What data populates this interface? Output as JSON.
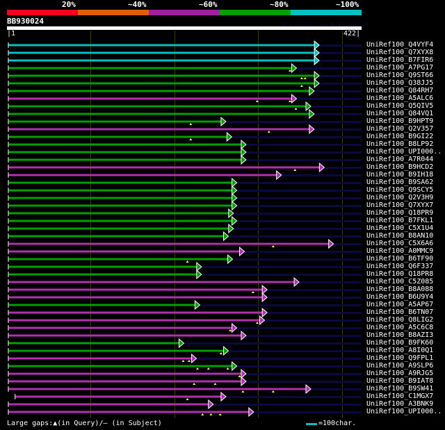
{
  "identity_legend": [
    {
      "label": "20%",
      "color": "#ff0020"
    },
    {
      "label": "~40%",
      "color": "#e06000"
    },
    {
      "label": "~60%",
      "color": "#a020a0"
    },
    {
      "label": "~80%",
      "color": "#00a000"
    },
    {
      "label": "~100%",
      "color": "#00c0c0"
    }
  ],
  "query": {
    "name": "BB930024",
    "start": "1",
    "end": "422",
    "length": 422,
    "version": "AlignView.pm Beta rel.7"
  },
  "colors": {
    "cyan": "#00c0c0",
    "green": "#00a000",
    "magenta": "#b030b0",
    "tail": "#0a0a40",
    "mark": "#ffff60"
  },
  "hits": [
    {
      "label": "UniRef100_Q4VYF4",
      "c": "cyan",
      "s": 1,
      "e": 365,
      "m": []
    },
    {
      "label": "UniRef100_Q7XYX8",
      "c": "cyan",
      "s": 1,
      "e": 365,
      "m": []
    },
    {
      "label": "UniRef100_B7FIR6",
      "c": "cyan",
      "s": 1,
      "e": 365,
      "m": []
    },
    {
      "label": "UniRef100_A7PG17",
      "c": "green",
      "s": 1,
      "e": 338,
      "m": [
        336
      ]
    },
    {
      "label": "UniRef100_Q9ST66",
      "c": "green",
      "s": 1,
      "e": 365,
      "m": [
        350,
        354
      ]
    },
    {
      "label": "UniRef100_Q38JJ5",
      "c": "green",
      "s": 1,
      "e": 365,
      "m": [
        350
      ]
    },
    {
      "label": "UniRef100_Q84RH7",
      "c": "green",
      "s": 1,
      "e": 359,
      "m": []
    },
    {
      "label": "UniRef100_A5ALC6",
      "c": "magenta",
      "s": 1,
      "e": 338,
      "m": [
        297,
        336
      ]
    },
    {
      "label": "UniRef100_Q5QIV5",
      "c": "green",
      "s": 1,
      "e": 355,
      "m": [
        343
      ]
    },
    {
      "label": "UniRef100_Q84VQ1",
      "c": "green",
      "s": 1,
      "e": 359,
      "m": []
    },
    {
      "label": "UniRef100_B9HPT9",
      "c": "green",
      "s": 1,
      "e": 254,
      "m": [
        218
      ]
    },
    {
      "label": "UniRef100_Q2V357",
      "c": "magenta",
      "s": 1,
      "e": 359,
      "m": [
        311
      ]
    },
    {
      "label": "UniRef100_B9GI22",
      "c": "green",
      "s": 1,
      "e": 261,
      "m": [
        218
      ]
    },
    {
      "label": "UniRef100_B8LP92",
      "c": "green",
      "s": 1,
      "e": 278,
      "m": []
    },
    {
      "label": "UniRef100_UPI000..",
      "c": "green",
      "s": 1,
      "e": 278,
      "m": []
    },
    {
      "label": "UniRef100_A7R044",
      "c": "green",
      "s": 1,
      "e": 278,
      "m": []
    },
    {
      "label": "UniRef100_B9HCD2",
      "c": "magenta",
      "s": 1,
      "e": 371,
      "m": [
        342
      ]
    },
    {
      "label": "UniRef100_B9IH18",
      "c": "magenta",
      "s": 1,
      "e": 320,
      "m": []
    },
    {
      "label": "UniRef100_B9SA62",
      "c": "green",
      "s": 1,
      "e": 267,
      "m": []
    },
    {
      "label": "UniRef100_Q9SCY5",
      "c": "green",
      "s": 1,
      "e": 267,
      "m": []
    },
    {
      "label": "UniRef100_Q2V3H9",
      "c": "green",
      "s": 1,
      "e": 267,
      "m": []
    },
    {
      "label": "UniRef100_Q7XYX7",
      "c": "green",
      "s": 1,
      "e": 267,
      "m": []
    },
    {
      "label": "UniRef100_Q18PR9",
      "c": "green",
      "s": 1,
      "e": 263,
      "m": []
    },
    {
      "label": "UniRef100_B7FKL1",
      "c": "green",
      "s": 1,
      "e": 267,
      "m": []
    },
    {
      "label": "UniRef100_C5X1U4",
      "c": "green",
      "s": 1,
      "e": 263,
      "m": []
    },
    {
      "label": "UniRef100_B8AN10",
      "c": "green",
      "s": 1,
      "e": 257,
      "m": []
    },
    {
      "label": "UniRef100_C5X6A6",
      "c": "magenta",
      "s": 1,
      "e": 382,
      "m": [
        316
      ]
    },
    {
      "label": "UniRef100_A0MMC9",
      "c": "magenta",
      "s": 1,
      "e": 276,
      "m": []
    },
    {
      "label": "UniRef100_B6TF90",
      "c": "green",
      "s": 1,
      "e": 262,
      "m": [
        214
      ]
    },
    {
      "label": "UniRef100_Q6F337",
      "c": "green",
      "s": 1,
      "e": 225,
      "m": []
    },
    {
      "label": "UniRef100_Q18PR8",
      "c": "green",
      "s": 1,
      "e": 225,
      "m": []
    },
    {
      "label": "UniRef100_C5Z085",
      "c": "magenta",
      "s": 1,
      "e": 341,
      "m": []
    },
    {
      "label": "UniRef100_B8A088",
      "c": "magenta",
      "s": 1,
      "e": 303,
      "m": [
        292
      ]
    },
    {
      "label": "UniRef100_B6U9Y4",
      "c": "magenta",
      "s": 1,
      "e": 303,
      "m": []
    },
    {
      "label": "UniRef100_A5AP67",
      "c": "green",
      "s": 1,
      "e": 223,
      "m": []
    },
    {
      "label": "UniRef100_B6TN07",
      "c": "magenta",
      "s": 1,
      "e": 303,
      "m": []
    },
    {
      "label": "UniRef100_Q8LIG2",
      "c": "magenta",
      "s": 1,
      "e": 300,
      "m": [
        297
      ]
    },
    {
      "label": "UniRef100_A5C6C8",
      "c": "magenta",
      "s": 1,
      "e": 267,
      "m": [
        265
      ]
    },
    {
      "label": "UniRef100_B8AZI3",
      "c": "magenta",
      "s": 1,
      "e": 278,
      "m": []
    },
    {
      "label": "UniRef100_B9FK60",
      "c": "green",
      "s": 1,
      "e": 204,
      "m": []
    },
    {
      "label": "UniRef100_A8I0Q1",
      "c": "green",
      "s": 1,
      "e": 257,
      "m": [
        254
      ]
    },
    {
      "label": "UniRef100_Q9FPL1",
      "c": "magenta",
      "s": 1,
      "e": 219,
      "m": [
        209,
        216
      ]
    },
    {
      "label": "UniRef100_A9SLP6",
      "c": "green",
      "s": 1,
      "e": 267,
      "m": [
        226,
        239,
        262
      ]
    },
    {
      "label": "UniRef100_A9RJG5",
      "c": "magenta",
      "s": 1,
      "e": 278,
      "m": [
        276
      ]
    },
    {
      "label": "UniRef100_B9IAT8",
      "c": "magenta",
      "s": 1,
      "e": 278,
      "m": [
        222,
        247
      ]
    },
    {
      "label": "UniRef100_B9SW41",
      "c": "magenta",
      "s": 1,
      "e": 355,
      "m": [
        280,
        316
      ]
    },
    {
      "label": "UniRef100_C1MGX7",
      "c": "magenta",
      "s": 9,
      "e": 254,
      "m": [
        214
      ]
    },
    {
      "label": "UniRef100_A3BNK9",
      "c": "magenta",
      "s": 1,
      "e": 239,
      "m": []
    },
    {
      "label": "UniRef100_UPI000..",
      "c": "magenta",
      "s": 1,
      "e": 287,
      "m": [
        232,
        242,
        253
      ]
    }
  ],
  "footer": {
    "gaps_legend": "Large gaps:▲(in Query)/– (in Subject)",
    "scale_text": "=100char."
  }
}
